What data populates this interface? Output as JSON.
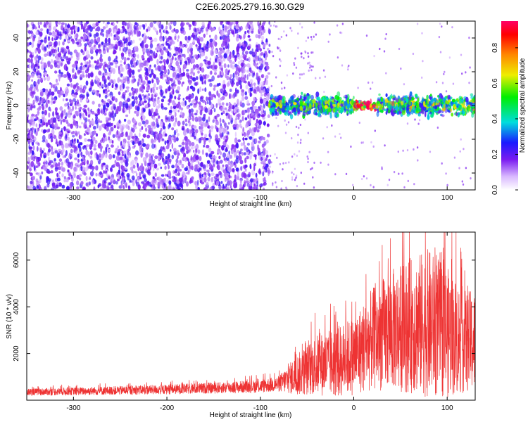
{
  "title": "C2E6.2025.279.16.30.G29",
  "colors": {
    "spectrogram_dot": "#7a1bf0",
    "snr_line": "#ee3333",
    "axis": "#000000",
    "background": "#ffffff"
  },
  "chart_data": [
    {
      "type": "heatmap",
      "xlabel": "Height of straight line (km)",
      "ylabel": "Frequency (Hz)",
      "xlim": [
        -350,
        130
      ],
      "ylim": [
        -50,
        50
      ],
      "x_ticks": [
        -300,
        -200,
        -100,
        0,
        100
      ],
      "y_ticks": [
        -40,
        -20,
        0,
        20,
        40
      ],
      "grid": false,
      "colorbar": {
        "label": "Normalized spectral amplitude",
        "range": [
          0.0,
          0.95
        ],
        "ticks": [
          0.0,
          0.2,
          0.4,
          0.6,
          0.8
        ],
        "colormap": "rainbow"
      },
      "regions": [
        {
          "x_range": [
            -350,
            -90
          ],
          "f_range": [
            -50,
            50
          ],
          "amplitude": 0.2,
          "desc_density": "dense"
        },
        {
          "x_range": [
            -90,
            0
          ],
          "f_range": [
            -8,
            8
          ],
          "amplitude": 0.45,
          "desc_density": "band"
        },
        {
          "x_range": [
            0,
            25
          ],
          "f_range": [
            -3,
            3
          ],
          "amplitude": 0.9,
          "desc_density": "band"
        },
        {
          "x_range": [
            25,
            130
          ],
          "f_range": [
            -8,
            8
          ],
          "amplitude": 0.5,
          "desc_density": "band"
        }
      ]
    },
    {
      "type": "line",
      "xlabel": "Height of straight line (km)",
      "ylabel": "SNR (10 * v/v)",
      "xlim": [
        -350,
        130
      ],
      "ylim": [
        0,
        7200
      ],
      "x_ticks": [
        -300,
        -200,
        -100,
        0,
        100
      ],
      "y_ticks": [
        2000,
        4000,
        6000
      ],
      "grid": false,
      "series": [
        {
          "x": [
            -350,
            -300,
            -250,
            -200,
            -150,
            -100,
            -80,
            -60,
            -40,
            -20,
            0,
            20,
            40,
            60,
            80,
            100,
            120,
            130
          ],
          "y": [
            350,
            380,
            420,
            460,
            520,
            600,
            700,
            1100,
            1500,
            1600,
            1900,
            2600,
            3000,
            3200,
            3300,
            2900,
            2500,
            2500
          ],
          "y_spread": [
            150,
            170,
            190,
            210,
            240,
            280,
            350,
            900,
            1300,
            1500,
            1700,
            2200,
            2600,
            2900,
            3200,
            2800,
            2200,
            2200
          ]
        }
      ]
    }
  ]
}
